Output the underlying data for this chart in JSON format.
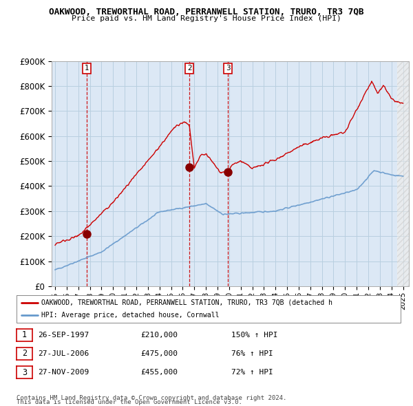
{
  "title": "OAKWOOD, TREWORTHAL ROAD, PERRANWELL STATION, TRURO, TR3 7QB",
  "subtitle": "Price paid vs. HM Land Registry's House Price Index (HPI)",
  "ylim": [
    0,
    900000
  ],
  "yticks": [
    0,
    100000,
    200000,
    300000,
    400000,
    500000,
    600000,
    700000,
    800000,
    900000
  ],
  "ytick_labels": [
    "£0",
    "£100K",
    "£200K",
    "£300K",
    "£400K",
    "£500K",
    "£600K",
    "£700K",
    "£800K",
    "£900K"
  ],
  "background_color": "#ffffff",
  "chart_bg_color": "#dce8f5",
  "grid_color": "#b8cfe0",
  "sale_color": "#cc0000",
  "hpi_color": "#6699cc",
  "vline_color": "#cc0000",
  "transactions": [
    {
      "num": 1,
      "year": 1997.75,
      "price": 210000,
      "date_str": "26-SEP-1997",
      "pct": "150%"
    },
    {
      "num": 2,
      "year": 2006.58,
      "price": 475000,
      "date_str": "27-JUL-2006",
      "pct": "76%"
    },
    {
      "num": 3,
      "year": 2009.9,
      "price": 455000,
      "date_str": "27-NOV-2009",
      "pct": "72%"
    }
  ],
  "legend_sale_label": "OAKWOOD, TREWORTHAL ROAD, PERRANWELL STATION, TRURO, TR3 7QB (detached h",
  "legend_hpi_label": "HPI: Average price, detached house, Cornwall",
  "footer1": "Contains HM Land Registry data © Crown copyright and database right 2024.",
  "footer2": "This data is licensed under the Open Government Licence v3.0.",
  "x_start_year": 1995,
  "x_end_year": 2025,
  "x_ticks": [
    1995,
    1996,
    1997,
    1998,
    1999,
    2000,
    2001,
    2002,
    2003,
    2004,
    2005,
    2006,
    2007,
    2008,
    2009,
    2010,
    2011,
    2012,
    2013,
    2014,
    2015,
    2016,
    2017,
    2018,
    2019,
    2020,
    2021,
    2022,
    2023,
    2024,
    2025
  ]
}
